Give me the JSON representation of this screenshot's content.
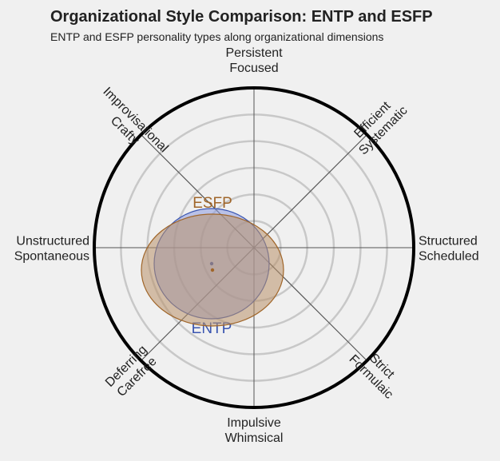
{
  "chart_data": {
    "type": "radar-ellipse",
    "title": "Organizational Style Comparison: ENTP and ESFP",
    "subtitle": "ENTP and ESFP personality types along organizational dimensions",
    "axes": [
      {
        "label": [
          "Persistent",
          "Focused"
        ],
        "angle": 90
      },
      {
        "label": [
          "Efficient",
          "Systematic"
        ],
        "angle": 45
      },
      {
        "label": [
          "Structured",
          "Scheduled"
        ],
        "angle": 0
      },
      {
        "label": [
          "Strict",
          "Formulaic"
        ],
        "angle": -45
      },
      {
        "label": [
          "Impulsive",
          "Whimsical"
        ],
        "angle": -90
      },
      {
        "label": [
          "Deferring",
          "Carefree"
        ],
        "angle": -135
      },
      {
        "label": [
          "Unstructured",
          "Spontaneous"
        ],
        "angle": 180
      },
      {
        "label": [
          "Improvisational",
          "Crafty"
        ],
        "angle": 135
      }
    ],
    "range": [
      0,
      1
    ],
    "grid_rings": [
      0.167,
      0.333,
      0.5,
      0.667,
      0.833
    ],
    "series": [
      {
        "name": "ENTP",
        "x": -0.265,
        "y": -0.1,
        "rx": 0.36,
        "ry": 0.345,
        "color": "#3a55b0",
        "fill": "#8c9ae0"
      },
      {
        "name": "ESFP",
        "x": -0.26,
        "y": -0.14,
        "rx": 0.445,
        "ry": 0.35,
        "color": "#a0662a",
        "fill": "#b9926a"
      }
    ]
  }
}
